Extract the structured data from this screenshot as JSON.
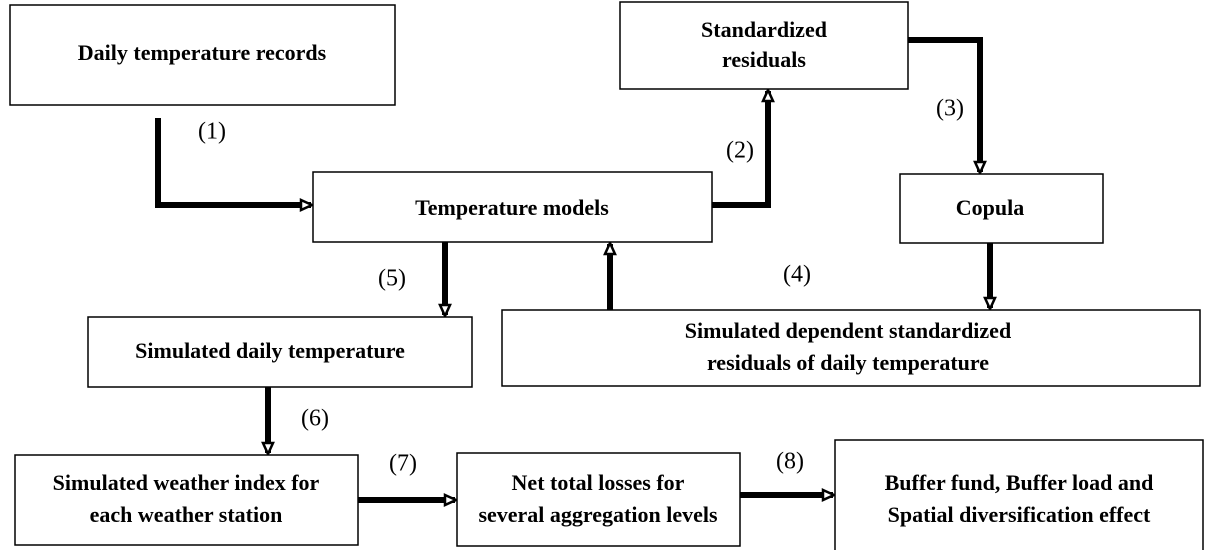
{
  "nodes": [
    {
      "lines": [
        "Daily temperature records"
      ]
    },
    {
      "lines": [
        "Standardized",
        "residuals"
      ]
    },
    {
      "lines": [
        "Temperature models"
      ]
    },
    {
      "lines": [
        "Copula"
      ]
    },
    {
      "lines": [
        "Simulated daily temperature"
      ]
    },
    {
      "lines": [
        "Simulated dependent standardized",
        "residuals of daily temperature"
      ]
    },
    {
      "lines": [
        "Simulated weather index for",
        "each weather station"
      ]
    },
    {
      "lines": [
        "Net total losses for",
        "several aggregation levels"
      ]
    },
    {
      "lines": [
        "Buffer fund, Buffer load and",
        "Spatial diversification effect"
      ]
    }
  ],
  "edges": [
    {
      "label": "(1)"
    },
    {
      "label": "(2)"
    },
    {
      "label": "(3)"
    },
    {
      "label": "(4)"
    },
    {
      "label": "(5)"
    },
    {
      "label": "(6)"
    },
    {
      "label": "(7)"
    },
    {
      "label": "(8)"
    }
  ]
}
